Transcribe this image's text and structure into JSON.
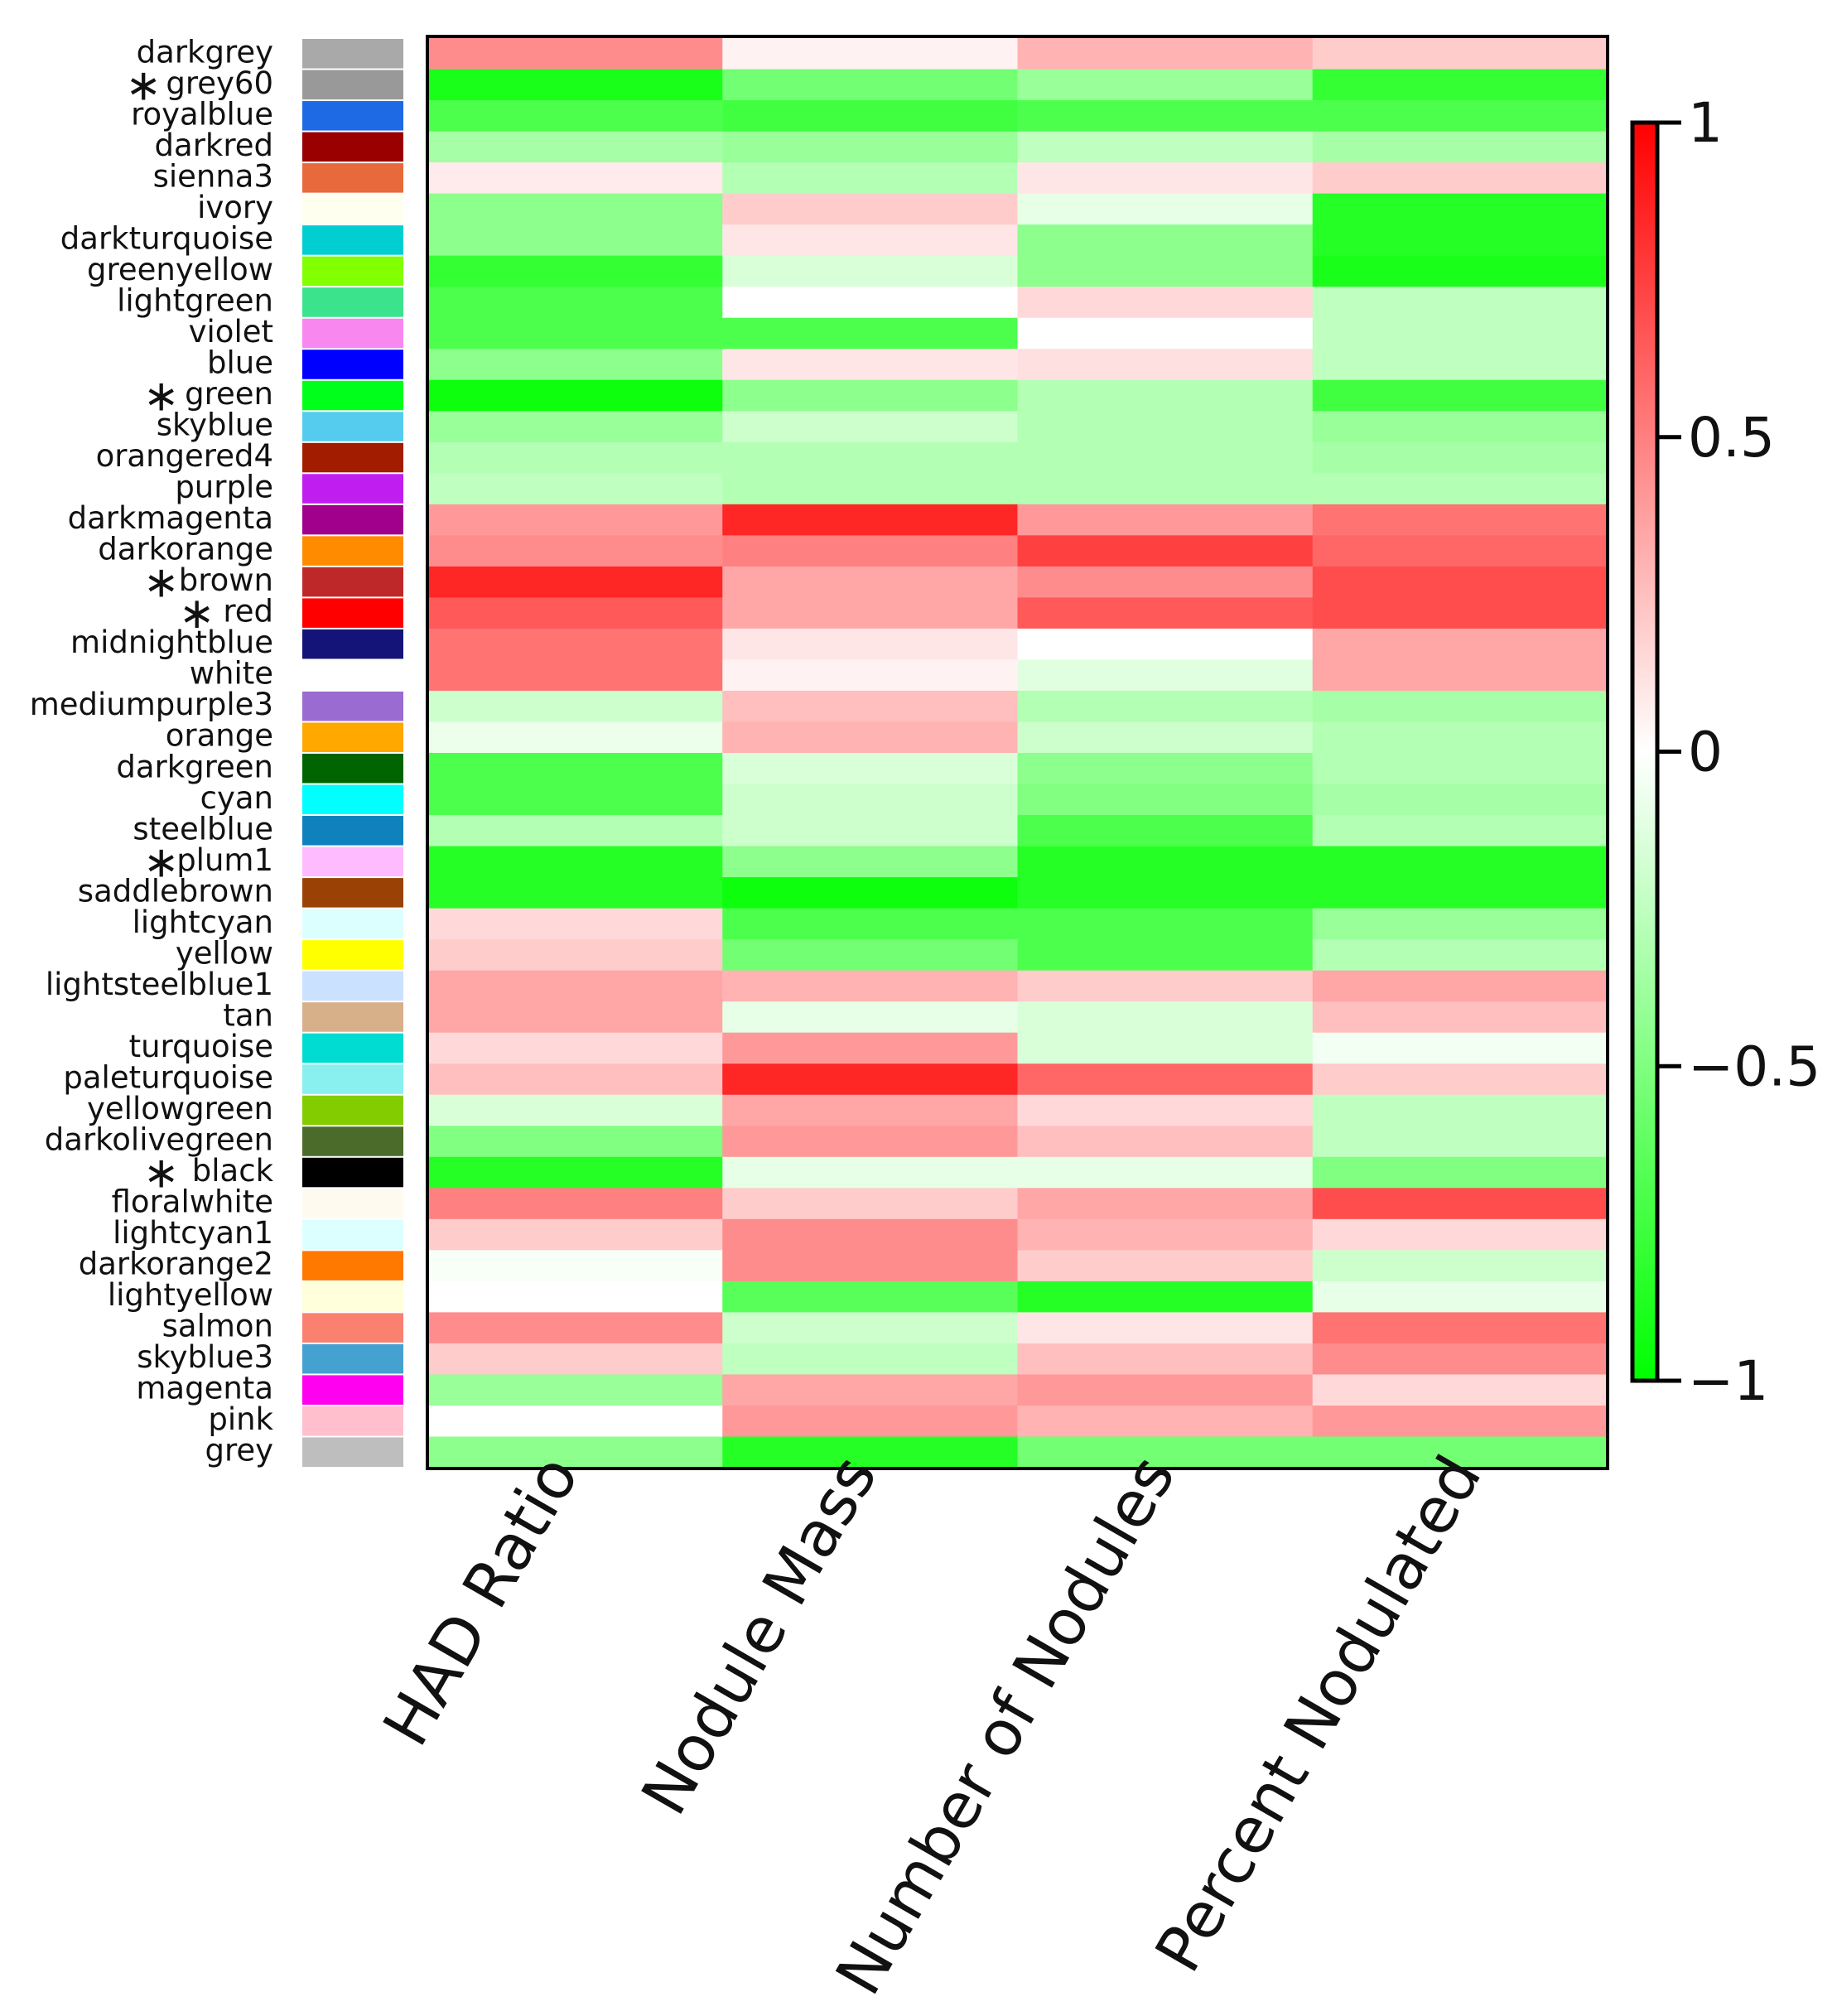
{
  "chart_data": {
    "type": "heatmap",
    "title": "",
    "columns": [
      "HAD Ratio",
      "Nodule Mass",
      "Number of Nodules",
      "Percent Nodulated"
    ],
    "rows": [
      {
        "label": "darkgrey",
        "star": false,
        "module_color": "#a9a9a9",
        "values": [
          0.45,
          0.05,
          0.3,
          0.2
        ]
      },
      {
        "label": "grey60",
        "star": true,
        "module_color": "#999999",
        "values": [
          -0.9,
          -0.55,
          -0.4,
          -0.8
        ]
      },
      {
        "label": "royalblue",
        "star": false,
        "module_color": "#1e6ae5",
        "values": [
          -0.7,
          -0.75,
          -0.7,
          -0.7
        ]
      },
      {
        "label": "darkred",
        "star": false,
        "module_color": "#9b0000",
        "values": [
          -0.35,
          -0.4,
          -0.25,
          -0.35
        ]
      },
      {
        "label": "sienna3",
        "star": false,
        "module_color": "#e8693b",
        "values": [
          0.08,
          -0.3,
          0.1,
          0.2
        ]
      },
      {
        "label": "ivory",
        "star": false,
        "module_color": "#fffff0",
        "values": [
          -0.45,
          0.2,
          -0.1,
          -0.85
        ]
      },
      {
        "label": "darkturquoise",
        "star": false,
        "module_color": "#00ced1",
        "values": [
          -0.45,
          0.1,
          -0.45,
          -0.85
        ]
      },
      {
        "label": "greenyellow",
        "star": false,
        "module_color": "#82ff00",
        "values": [
          -0.8,
          -0.15,
          -0.45,
          -0.9
        ]
      },
      {
        "label": "lightgreen",
        "star": false,
        "module_color": "#3be38c",
        "values": [
          -0.7,
          0.0,
          0.15,
          -0.25
        ]
      },
      {
        "label": "violet",
        "star": false,
        "module_color": "#f987f0",
        "values": [
          -0.7,
          -0.7,
          0.0,
          -0.25
        ]
      },
      {
        "label": "blue",
        "star": false,
        "module_color": "#0000ff",
        "values": [
          -0.45,
          0.1,
          0.12,
          -0.25
        ]
      },
      {
        "label": "green",
        "star": true,
        "module_color": "#00ff1a",
        "values": [
          -0.95,
          -0.45,
          -0.3,
          -0.75
        ]
      },
      {
        "label": "skyblue",
        "star": false,
        "module_color": "#55ccee",
        "values": [
          -0.4,
          -0.2,
          -0.3,
          -0.4
        ]
      },
      {
        "label": "orangered4",
        "star": false,
        "module_color": "#a21c00",
        "values": [
          -0.3,
          -0.3,
          -0.3,
          -0.35
        ]
      },
      {
        "label": "purple",
        "star": false,
        "module_color": "#c01ef0",
        "values": [
          -0.25,
          -0.3,
          -0.3,
          -0.3
        ]
      },
      {
        "label": "darkmagenta",
        "star": false,
        "module_color": "#a0008c",
        "values": [
          0.4,
          0.85,
          0.4,
          0.55
        ]
      },
      {
        "label": "darkorange",
        "star": false,
        "module_color": "#ff8c00",
        "values": [
          0.45,
          0.5,
          0.75,
          0.6
        ]
      },
      {
        "label": "brown",
        "star": true,
        "module_color": "#bf2828",
        "values": [
          0.85,
          0.35,
          0.45,
          0.7
        ]
      },
      {
        "label": "red",
        "star": true,
        "module_color": "#ff0000",
        "values": [
          0.65,
          0.35,
          0.65,
          0.7
        ]
      },
      {
        "label": "midnightblue",
        "star": false,
        "module_color": "#141478",
        "values": [
          0.55,
          0.1,
          0.0,
          0.35
        ]
      },
      {
        "label": "white",
        "star": false,
        "module_color": "#ffffff",
        "values": [
          0.55,
          0.05,
          -0.12,
          0.35
        ]
      },
      {
        "label": "mediumpurple3",
        "star": false,
        "module_color": "#9a6bd0",
        "values": [
          -0.2,
          0.25,
          -0.3,
          -0.35
        ]
      },
      {
        "label": "orange",
        "star": false,
        "module_color": "#ffa800",
        "values": [
          -0.08,
          0.3,
          -0.2,
          -0.3
        ]
      },
      {
        "label": "darkgreen",
        "star": false,
        "module_color": "#006400",
        "values": [
          -0.7,
          -0.15,
          -0.45,
          -0.3
        ]
      },
      {
        "label": "cyan",
        "star": false,
        "module_color": "#00ffff",
        "values": [
          -0.7,
          -0.2,
          -0.5,
          -0.35
        ]
      },
      {
        "label": "steelblue",
        "star": false,
        "module_color": "#0f82be",
        "values": [
          -0.3,
          -0.2,
          -0.7,
          -0.3
        ]
      },
      {
        "label": "plum1",
        "star": true,
        "module_color": "#ffbbff",
        "values": [
          -0.85,
          -0.45,
          -0.85,
          -0.85
        ]
      },
      {
        "label": "saddlebrown",
        "star": false,
        "module_color": "#9a4205",
        "values": [
          -0.85,
          -0.95,
          -0.85,
          -0.85
        ]
      },
      {
        "label": "lightcyan",
        "star": false,
        "module_color": "#dcffff",
        "values": [
          0.15,
          -0.7,
          -0.7,
          -0.4
        ]
      },
      {
        "label": "yellow",
        "star": false,
        "module_color": "#ffff00",
        "values": [
          0.2,
          -0.55,
          -0.7,
          -0.3
        ]
      },
      {
        "label": "lightsteelblue1",
        "star": false,
        "module_color": "#cae1ff",
        "values": [
          0.35,
          0.3,
          0.2,
          0.35
        ]
      },
      {
        "label": "tan",
        "star": false,
        "module_color": "#d7b08a",
        "values": [
          0.35,
          -0.1,
          -0.15,
          0.25
        ]
      },
      {
        "label": "turquoise",
        "star": false,
        "module_color": "#00dcd2",
        "values": [
          0.15,
          0.4,
          -0.15,
          -0.05
        ]
      },
      {
        "label": "paleturquoise",
        "star": false,
        "module_color": "#8aefef",
        "values": [
          0.25,
          0.85,
          0.6,
          0.2
        ]
      },
      {
        "label": "yellowgreen",
        "star": false,
        "module_color": "#82cc00",
        "values": [
          -0.15,
          0.35,
          0.15,
          -0.25
        ]
      },
      {
        "label": "darkolivegreen",
        "star": false,
        "module_color": "#4b6b2b",
        "values": [
          -0.5,
          0.4,
          0.25,
          -0.25
        ]
      },
      {
        "label": "black",
        "star": true,
        "module_color": "#000000",
        "values": [
          -0.85,
          -0.1,
          -0.1,
          -0.5
        ]
      },
      {
        "label": "floralwhite",
        "star": false,
        "module_color": "#fffaf0",
        "values": [
          0.5,
          0.2,
          0.35,
          0.7
        ]
      },
      {
        "label": "lightcyan1",
        "star": false,
        "module_color": "#dcffff",
        "values": [
          0.2,
          0.45,
          0.3,
          0.15
        ]
      },
      {
        "label": "darkorange2",
        "star": false,
        "module_color": "#ff7800",
        "values": [
          -0.03,
          0.45,
          0.2,
          -0.2
        ]
      },
      {
        "label": "lightyellow",
        "star": false,
        "module_color": "#ffffdc",
        "values": [
          0.0,
          -0.65,
          -0.85,
          -0.1
        ]
      },
      {
        "label": "salmon",
        "star": false,
        "module_color": "#fa8070",
        "values": [
          0.45,
          -0.2,
          0.1,
          0.55
        ]
      },
      {
        "label": "skyblue3",
        "star": false,
        "module_color": "#45a1d0",
        "values": [
          0.2,
          -0.25,
          0.25,
          0.45
        ]
      },
      {
        "label": "magenta",
        "star": false,
        "module_color": "#ff00f0",
        "values": [
          -0.4,
          0.35,
          0.4,
          0.15
        ]
      },
      {
        "label": "pink",
        "star": false,
        "module_color": "#ffbfcc",
        "values": [
          0.0,
          0.4,
          0.3,
          0.4
        ]
      },
      {
        "label": "grey",
        "star": false,
        "module_color": "#bebebe",
        "values": [
          -0.45,
          -0.85,
          -0.55,
          -0.55
        ]
      }
    ],
    "colorbar": {
      "range": [
        -1,
        1
      ],
      "ticks": [
        1,
        0.5,
        0,
        -0.5,
        -1
      ],
      "tick_labels": [
        "1",
        "0.5",
        "0",
        "−0.5",
        "−1"
      ],
      "low_color": "#00ff00",
      "mid_color": "#ffffff",
      "high_color": "#ff0000"
    },
    "significance_marker": "∗"
  }
}
